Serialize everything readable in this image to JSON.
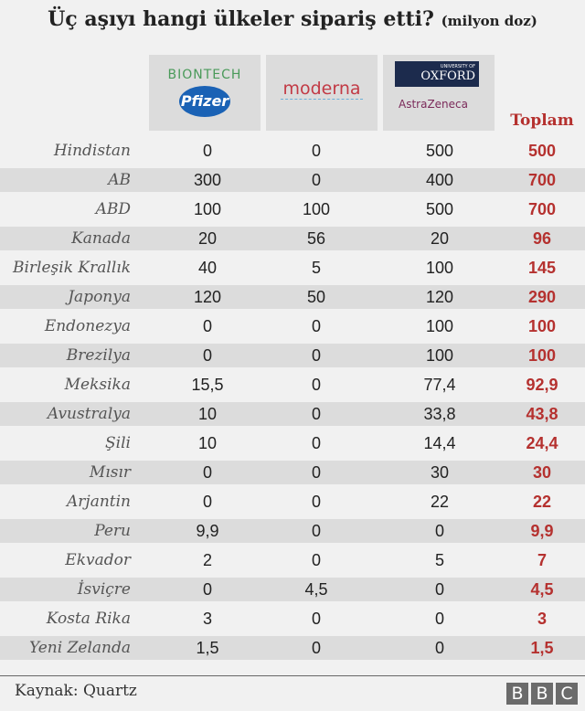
{
  "title": "Üç aşıyı hangi ülkeler sipariş etti?",
  "unit": "(milyon doz)",
  "logos": {
    "col1_top": "BIONTECH",
    "col1_bottom": "Pfizer",
    "col2": "moderna",
    "col3_top_small": "UNIVERSITY OF",
    "col3_top": "OXFORD",
    "col3_bottom": "AstraZeneca"
  },
  "chart_data": {
    "type": "table",
    "columns": [
      "BioNTech/Pfizer",
      "Moderna",
      "Oxford/AstraZeneca",
      "Toplam"
    ],
    "total_header": "Toplam",
    "rows": [
      [
        "Hindistan",
        "0",
        "0",
        "500",
        "500"
      ],
      [
        "AB",
        "300",
        "0",
        "400",
        "700"
      ],
      [
        "ABD",
        "100",
        "100",
        "500",
        "700"
      ],
      [
        "Kanada",
        "20",
        "56",
        "20",
        "96"
      ],
      [
        "Birleşik Krallık",
        "40",
        "5",
        "100",
        "145"
      ],
      [
        "Japonya",
        "120",
        "50",
        "120",
        "290"
      ],
      [
        "Endonezya",
        "0",
        "0",
        "100",
        "100"
      ],
      [
        "Brezilya",
        "0",
        "0",
        "100",
        "100"
      ],
      [
        "Meksika",
        "15,5",
        "0",
        "77,4",
        "92,9"
      ],
      [
        "Avustralya",
        "10",
        "0",
        "33,8",
        "43,8"
      ],
      [
        "Şili",
        "10",
        "0",
        "14,4",
        "24,4"
      ],
      [
        "Mısır",
        "0",
        "0",
        "30",
        "30"
      ],
      [
        "Arjantin",
        "0",
        "0",
        "22",
        "22"
      ],
      [
        "Peru",
        "9,9",
        "0",
        "0",
        "9,9"
      ],
      [
        "Ekvador",
        "2",
        "0",
        "5",
        "7"
      ],
      [
        "İsviçre",
        "0",
        "4,5",
        "0",
        "4,5"
      ],
      [
        "Kosta Rika",
        "3",
        "0",
        "0",
        "3"
      ],
      [
        "Yeni Zelanda",
        "1,5",
        "0",
        "0",
        "1,5"
      ]
    ]
  },
  "footer": {
    "source": "Kaynak: Quartz",
    "logo": [
      "B",
      "B",
      "C"
    ]
  },
  "colors": {
    "total": "#b5312f",
    "stripe": "#dcdcdc",
    "background": "#f1f1f1"
  }
}
